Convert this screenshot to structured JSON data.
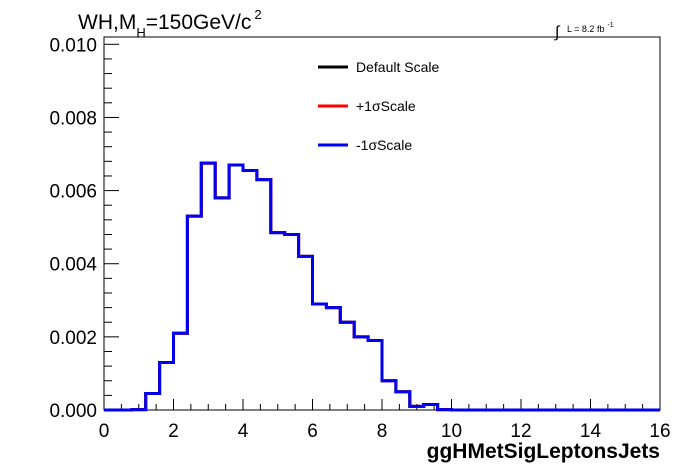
{
  "chart_data": {
    "type": "step",
    "title_main": "WH,M",
    "title_sub": "H",
    "title_rest": "=150GeV/c",
    "title_sup": "2",
    "lumi_text": "L = 8.2 fb",
    "lumi_sup": "-1",
    "xlabel": "ggHMetSigLeptonsJets",
    "ylabel": "",
    "xlim": [
      0,
      16
    ],
    "ylim": [
      0,
      0.0102
    ],
    "x_ticks": [
      "0",
      "2",
      "4",
      "6",
      "8",
      "10",
      "12",
      "14",
      "16"
    ],
    "y_ticks": [
      "0.000",
      "0.002",
      "0.004",
      "0.006",
      "0.008",
      "0.010"
    ],
    "legend_position": "top-center",
    "grid": false,
    "bin_width": 0.4,
    "bin_start": 0,
    "series": [
      {
        "name": "Default Scale",
        "color": "#000000",
        "values": [
          0,
          0,
          1e-05,
          0.00045,
          0.0013,
          0.0021,
          0.0053,
          0.00675,
          0.0058,
          0.0067,
          0.00655,
          0.0063,
          0.00485,
          0.0048,
          0.0042,
          0.0029,
          0.0028,
          0.0024,
          0.002,
          0.0019,
          0.0008,
          0.0005,
          0.0001,
          0.00015,
          1e-05,
          0,
          0,
          0,
          0,
          0,
          0,
          0,
          0,
          0,
          0,
          0,
          0,
          0,
          0,
          0
        ]
      },
      {
        "name": "+1σScale",
        "color": "#ff0000",
        "values": [
          0,
          0,
          1e-05,
          0.00045,
          0.0013,
          0.0021,
          0.0053,
          0.00675,
          0.0058,
          0.0067,
          0.00655,
          0.0063,
          0.00485,
          0.0048,
          0.0042,
          0.0029,
          0.0028,
          0.0024,
          0.002,
          0.0019,
          0.0008,
          0.0005,
          0.0001,
          0.00015,
          1e-05,
          0,
          0,
          0,
          0,
          0,
          0,
          0,
          0,
          0,
          0,
          0,
          0,
          0,
          0,
          0
        ]
      },
      {
        "name": "-1σScale",
        "color": "#0000ee",
        "values": [
          0,
          0,
          1e-05,
          0.00045,
          0.0013,
          0.0021,
          0.0053,
          0.00675,
          0.0058,
          0.0067,
          0.00655,
          0.0063,
          0.00485,
          0.0048,
          0.0042,
          0.0029,
          0.0028,
          0.0024,
          0.002,
          0.0019,
          0.0008,
          0.0005,
          0.0001,
          0.00015,
          1e-05,
          0,
          0,
          0,
          0,
          0,
          0,
          0,
          0,
          0,
          0,
          0,
          0,
          0,
          0,
          0
        ]
      }
    ]
  }
}
